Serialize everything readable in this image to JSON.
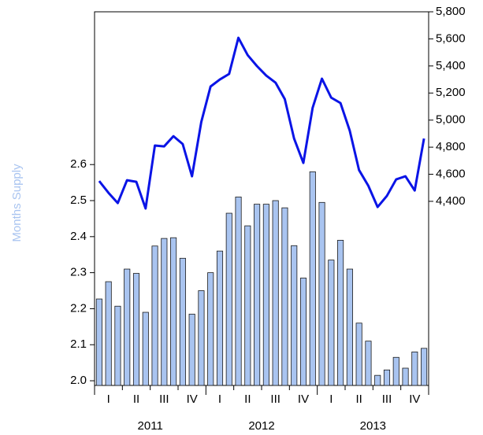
{
  "chart_data": {
    "type": "bar-line",
    "y_label": "Months Supply",
    "categories": [
      null,
      null,
      null,
      null,
      null,
      null,
      null,
      null,
      null,
      null,
      null,
      null,
      null,
      null,
      null,
      null,
      null,
      null,
      null,
      null,
      null,
      null,
      null,
      null,
      null,
      null,
      null,
      null,
      null,
      null,
      null,
      null,
      null,
      null,
      null,
      null
    ],
    "quarters": [
      "I",
      "II",
      "III",
      "IV",
      "I",
      "II",
      "III",
      "IV",
      "I",
      "II",
      "III",
      "IV"
    ],
    "years": [
      "2011",
      "2012",
      "2013"
    ],
    "series": [
      {
        "type": "bar",
        "color": "#a9c4f0",
        "values": [
          2.227,
          2.275,
          2.207,
          2.31,
          2.298,
          2.19,
          2.374,
          2.395,
          2.397,
          2.34,
          2.185,
          2.25,
          2.3,
          2.36,
          2.465,
          2.51,
          2.43,
          2.49,
          2.49,
          2.5,
          2.48,
          2.375,
          2.285,
          2.58,
          2.495,
          2.335,
          2.39,
          2.31,
          2.16,
          2.11,
          2.015,
          2.03,
          2.065,
          2.035,
          2.08,
          2.09
        ]
      },
      {
        "type": "line",
        "axis": "y2",
        "color": "#0a14e6",
        "values": [
          4550,
          4463,
          4387,
          4556,
          4544,
          4347,
          4812,
          4806,
          4881,
          4823,
          4585,
          4986,
          5248,
          5300,
          5341,
          5608,
          5480,
          5399,
          5329,
          5277,
          5155,
          4864,
          4684,
          5091,
          5306,
          5166,
          5126,
          4922,
          4631,
          4515,
          4358,
          4440,
          4562,
          4585,
          4480,
          4864
        ]
      }
    ],
    "ylim": [
      1.987,
      3.024
    ],
    "yticks": [
      {
        "value": 2.0,
        "label": "2.0"
      },
      2.1,
      2.2,
      2.3,
      2.4,
      2.5,
      2.6
    ],
    "y2lim": [
      3040,
      5800
    ],
    "y2ticks": [
      {
        "value": 4400,
        "label": "4,400"
      },
      {
        "value": 4600,
        "label": "4,600"
      },
      {
        "value": 4800,
        "label": "4,800"
      },
      {
        "value": 5000,
        "label": "5,000"
      },
      {
        "value": 5200,
        "label": "5,200"
      },
      {
        "value": 5400,
        "label": "5,400"
      },
      {
        "value": 5600,
        "label": "5,600"
      },
      {
        "value": 5800,
        "label": "5,800"
      }
    ]
  }
}
